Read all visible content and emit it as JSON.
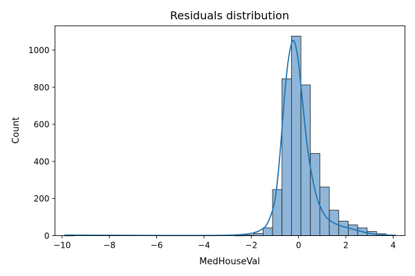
{
  "chart_data": {
    "type": "histogram",
    "title": "Residuals distribution",
    "xlabel": "MedHouseVal",
    "ylabel": "Count",
    "xlim": [
      -10.3,
      4.5
    ],
    "ylim": [
      0,
      1130
    ],
    "xticks": [
      -10,
      -8,
      -6,
      -4,
      -2,
      0,
      2,
      4
    ],
    "yticks": [
      0,
      200,
      400,
      600,
      800,
      1000
    ],
    "grid": false,
    "legend": "none",
    "bin_edges": [
      -9.9,
      -9.5,
      -9.1,
      -8.7,
      -8.3,
      -7.9,
      -7.5,
      -7.1,
      -6.7,
      -6.3,
      -5.9,
      -5.5,
      -5.1,
      -4.7,
      -4.3,
      -3.9,
      -3.5,
      -3.1,
      -2.7,
      -2.3,
      -1.9,
      -1.5,
      -1.1,
      -0.7,
      -0.3,
      0.1,
      0.5,
      0.9,
      1.3,
      1.7,
      2.1,
      2.5,
      2.9,
      3.3,
      3.7,
      4.1
    ],
    "counts": [
      1,
      0,
      0,
      0,
      0,
      0,
      0,
      0,
      0,
      0,
      0,
      0,
      0,
      0,
      0,
      0,
      0,
      0,
      1,
      3,
      12,
      42,
      248,
      845,
      1075,
      812,
      443,
      262,
      137,
      78,
      58,
      42,
      22,
      10,
      2
    ],
    "kde": {
      "x": [
        -9.9,
        -8.0,
        -6.0,
        -4.0,
        -3.0,
        -2.5,
        -2.0,
        -1.6,
        -1.3,
        -1.0,
        -0.8,
        -0.6,
        -0.45,
        -0.3,
        -0.2,
        -0.1,
        0.0,
        0.1,
        0.25,
        0.4,
        0.6,
        0.8,
        1.0,
        1.2,
        1.5,
        1.8,
        2.1,
        2.5,
        3.0,
        3.5,
        4.1
      ],
      "y": [
        3,
        2,
        1,
        1,
        2,
        5,
        12,
        30,
        70,
        190,
        420,
        740,
        930,
        1035,
        1050,
        1010,
        930,
        810,
        620,
        450,
        300,
        195,
        135,
        95,
        68,
        52,
        42,
        28,
        12,
        5,
        2
      ]
    },
    "colors": {
      "bar_fill": "#8fb6d9",
      "bar_edge": "#1a1a1a",
      "kde_line": "#1f77b4"
    }
  }
}
